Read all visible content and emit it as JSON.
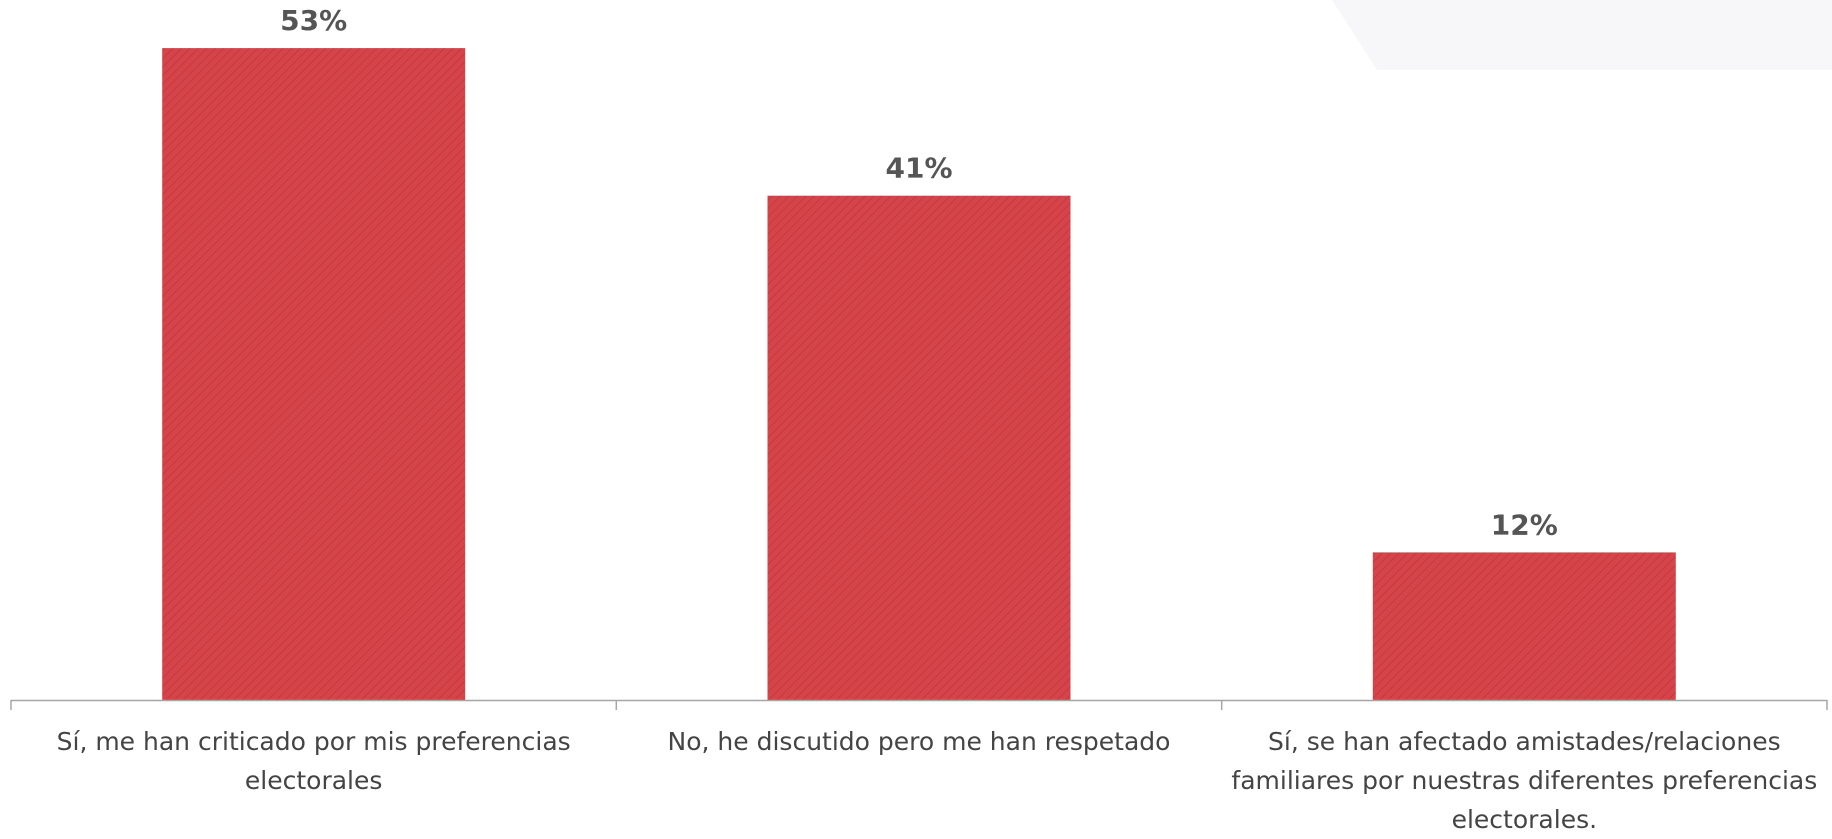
{
  "chart_data": {
    "type": "bar",
    "categories": [
      "Sí, me han criticado por mis preferencias electorales",
      "No, he discutido pero me han respetado",
      "Sí, se han afectado amistades/relaciones familiares por nuestras diferentes preferencias electorales."
    ],
    "values": [
      53,
      41,
      12
    ],
    "value_labels": [
      "53%",
      "41%",
      "12%"
    ],
    "title": "",
    "xlabel": "",
    "ylabel": "",
    "ylim": [
      0,
      55
    ],
    "grid": false,
    "legend": "none",
    "bar_color": "#d6444a",
    "bar_pattern": "diagonal-hatch",
    "label_color": "#555555",
    "axis_color": "#a6a6a6"
  }
}
